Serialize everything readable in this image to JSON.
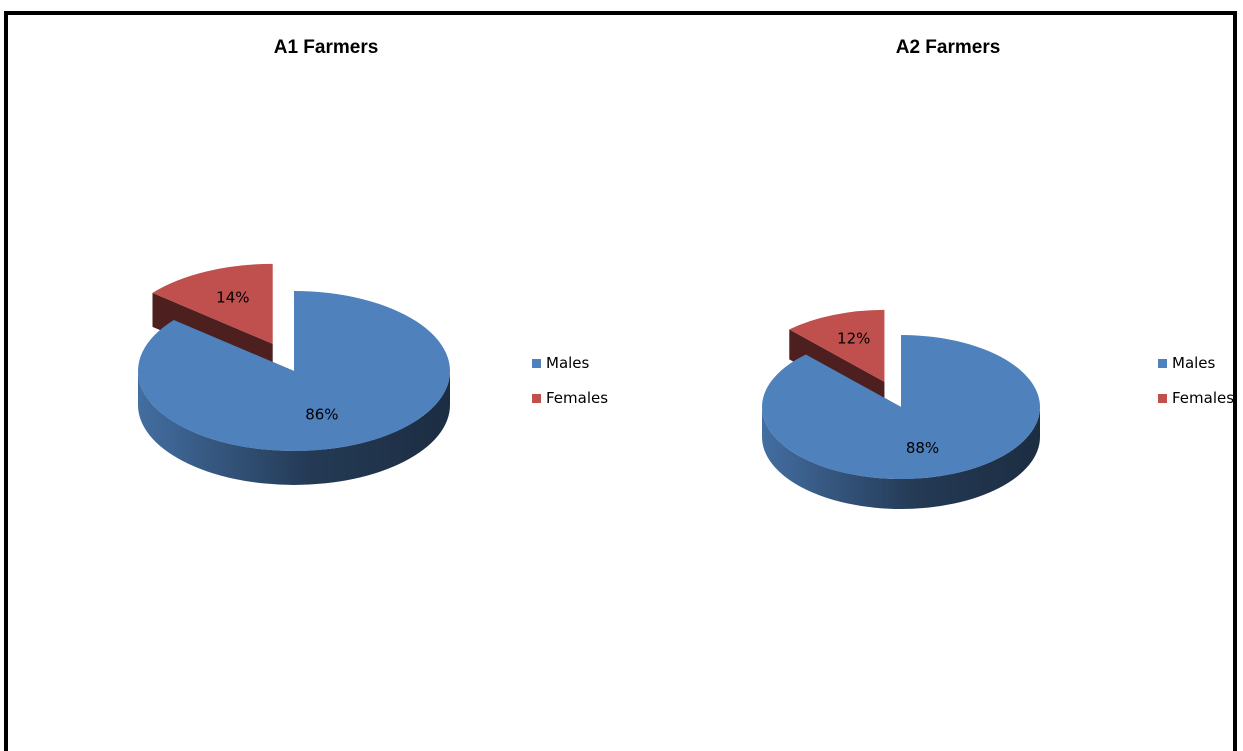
{
  "chart_data": [
    {
      "type": "pie",
      "title": "A1 Farmers",
      "categories": [
        "Males",
        "Females"
      ],
      "values": [
        86,
        14
      ],
      "data_labels": [
        "86%",
        "14%"
      ],
      "colors": [
        "#4F81BD",
        "#C0504D"
      ],
      "exploded": "Females",
      "legend_position": "right"
    },
    {
      "type": "pie",
      "title": "A2 Farmers",
      "categories": [
        "Males",
        "Females"
      ],
      "values": [
        88,
        12
      ],
      "data_labels": [
        "88%",
        "12%"
      ],
      "colors": [
        "#4F81BD",
        "#C0504D"
      ],
      "exploded": "Females",
      "legend_position": "right"
    }
  ]
}
